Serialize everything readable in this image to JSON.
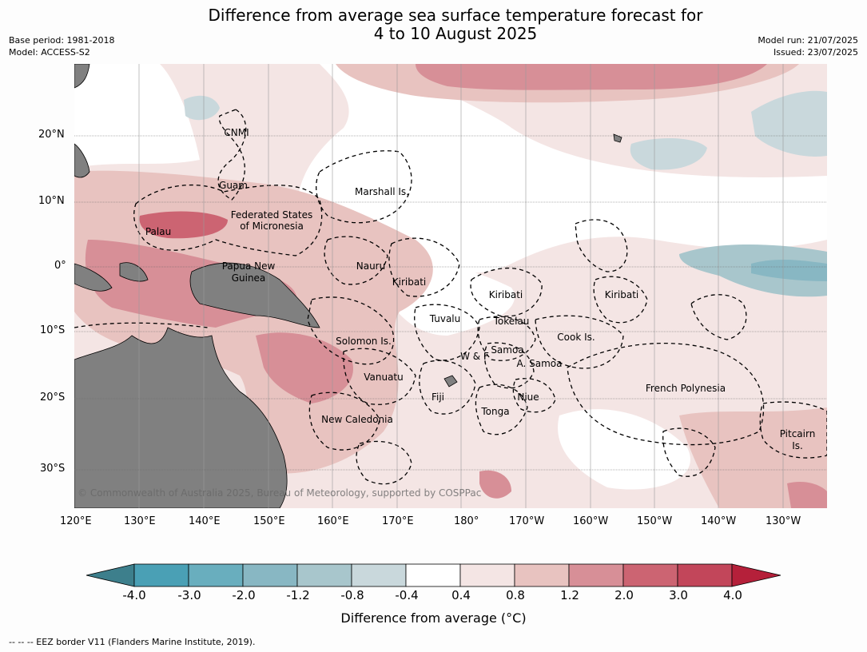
{
  "title_line1": "Difference from average sea surface temperature forecast for",
  "title_line2": "4 to 10 August 2025",
  "meta_left": [
    "Base period: 1981-2018",
    "Model: ACCESS-S2"
  ],
  "meta_right": [
    "Model run: 21/07/2025",
    "Issued: 23/07/2025"
  ],
  "lon_labels": [
    "120°E",
    "130°E",
    "140°E",
    "150°E",
    "160°E",
    "170°E",
    "180°",
    "170°W",
    "160°W",
    "150°W",
    "140°W",
    "130°W"
  ],
  "lat_labels": [
    "20°N",
    "10°N",
    "0°",
    "10°S",
    "20°S",
    "30°S"
  ],
  "places": [
    "CNMI",
    "Guam",
    "Marshall Is.",
    "Federated States",
    "of Micronesia",
    "Palau",
    "Nauru",
    "Papua New",
    "Guinea",
    "Kiribati",
    "Kiribati",
    "Kiribati",
    "Tuvalu",
    "Tokelau",
    "Cook Is.",
    "Solomon Is.",
    "W & F",
    "Samoa",
    "A. Samoa",
    "Vanuatu",
    "Fiji",
    "Niue",
    "French Polynesia",
    "Tonga",
    "New Caledonia",
    "Pitcairn",
    "Is."
  ],
  "copyright": "© Commonwealth of Australia 2025, Bureau of Meteorology, supported by COSPPac",
  "colorbar": {
    "label": "Difference from average (°C)",
    "ticks": [
      "-4.0",
      "-3.0",
      "-2.0",
      "-1.2",
      "-0.8",
      "-0.4",
      "0.4",
      "0.8",
      "1.2",
      "2.0",
      "3.0",
      "4.0"
    ],
    "colors": [
      "#3d7f8c",
      "#4aa0b5",
      "#69aebe",
      "#88b7c3",
      "#a8c6cc",
      "#c9d8dc",
      "#ffffff",
      "#f4e5e4",
      "#e8c3c0",
      "#d78f97",
      "#cc6472",
      "#c2465a",
      "#b5203a"
    ]
  },
  "footer": "--  --  -- EEZ border V11 (Flanders Marine Institute, 2019)."
}
